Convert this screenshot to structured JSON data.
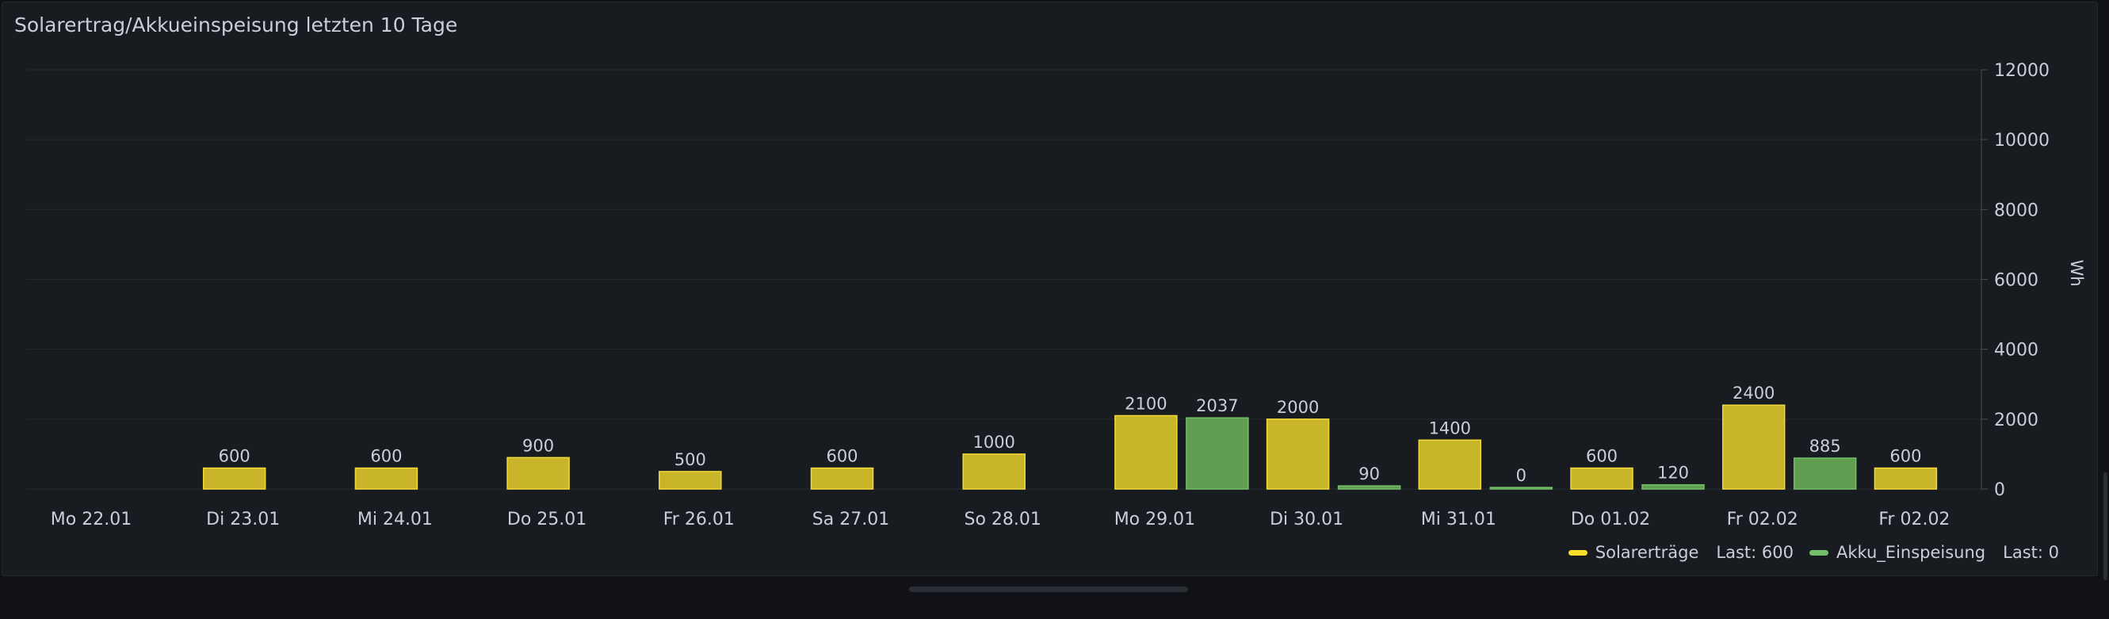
{
  "panel": {
    "title": "Solarertrag/Akkueinspeisung letzten 10 Tage"
  },
  "colors": {
    "background": "#181b1f",
    "solar": "#c9b52a",
    "solar_border": "#f2d93a",
    "akku": "#629e51",
    "akku_border": "#73bf69",
    "grid": "#26292f",
    "label": "#ccccdc"
  },
  "legend": {
    "items": [
      {
        "name": "Solarerträge",
        "last": "Last: 600",
        "color": "#fade2a"
      },
      {
        "name": "Akku_Einspeisung",
        "last": "Last: 0",
        "color": "#73bf69"
      }
    ]
  },
  "chart_data": {
    "type": "bar",
    "title": "Solarertrag/Akkueinspeisung letzten 10 Tage",
    "categories": [
      "Mo 22.01",
      "Di 23.01",
      "Mi 24.01",
      "Do 25.01",
      "Fr 26.01",
      "Sa 27.01",
      "So 28.01",
      "Mo 29.01",
      "Di 30.01",
      "Mi 31.01",
      "Do 01.02",
      "Fr 02.02",
      "Fr 02.02"
    ],
    "series": [
      {
        "name": "Solarerträge",
        "values": [
          null,
          600,
          600,
          900,
          500,
          600,
          1000,
          2100,
          2000,
          1400,
          600,
          2400,
          600
        ]
      },
      {
        "name": "Akku_Einspeisung",
        "values": [
          null,
          null,
          null,
          null,
          null,
          null,
          null,
          2037,
          90,
          0,
          120,
          885,
          null
        ]
      }
    ],
    "ylabel": "Wh",
    "xlabel": "",
    "ylim": [
      0,
      12000
    ],
    "yticks": [
      0,
      2000,
      4000,
      6000,
      8000,
      10000,
      12000
    ],
    "y_axis_position": "right",
    "grid": true,
    "legend_position": "bottom-right"
  }
}
